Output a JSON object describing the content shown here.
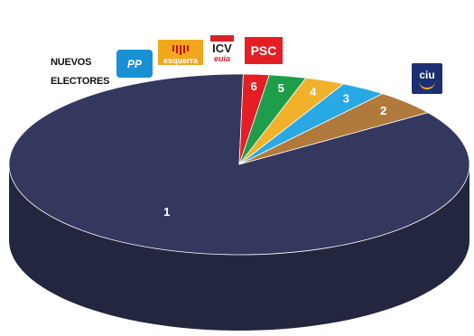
{
  "chart_data": {
    "type": "pie",
    "title": "",
    "style": "3d",
    "slices": [
      {
        "label": "1",
        "value": 85.0,
        "color": "#34385f",
        "dark": "#23263f",
        "party": "CiU"
      },
      {
        "label": "2",
        "value": 4.6,
        "color": "#b07a3c",
        "dark": "#7b5428",
        "party": "NUEVOS ELECTORES"
      },
      {
        "label": "3",
        "value": 3.2,
        "color": "#29a9e3",
        "dark": "#1c7aa3",
        "party": "PP"
      },
      {
        "label": "4",
        "value": 2.8,
        "color": "#f1b12a",
        "dark": "#b2831e",
        "party": "esquerra"
      },
      {
        "label": "5",
        "value": 2.6,
        "color": "#1e9e4a",
        "dark": "#146d33",
        "party": "ICV EUiA"
      },
      {
        "label": "6",
        "value": 1.8,
        "color": "#e31e24",
        "dark": "#a0161a",
        "party": "PSC"
      }
    ]
  },
  "labels": {
    "nuevos_electores_line1": "NUEVOS",
    "nuevos_electores_line2": "ELECTORES"
  },
  "logos": {
    "pp": "PP",
    "esquerra": "esquerra",
    "icv_top": "ICV",
    "icv_bottom": "euia",
    "psc": "PSC",
    "ciu": "ciu"
  }
}
